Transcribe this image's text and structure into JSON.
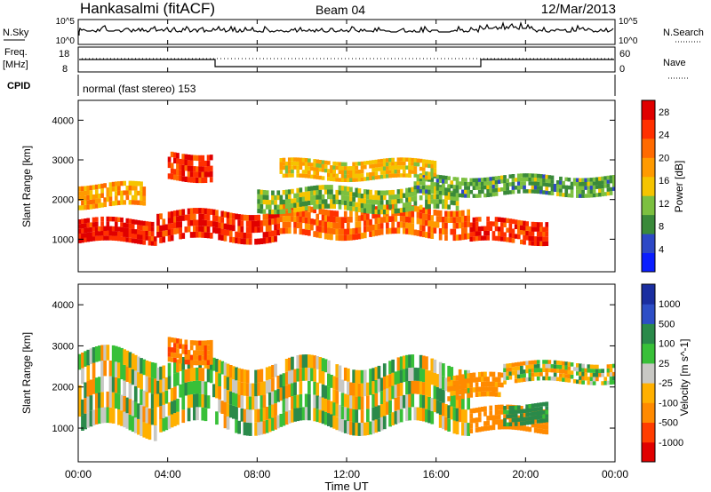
{
  "header": {
    "station": "Hankasalmi (fitACF)",
    "beam": "Beam 04",
    "date": "12/Mar/2013"
  },
  "noise_panel": {
    "left_label": "N.Sky",
    "right_label": "N.Search",
    "left_ticks": [
      "10^5",
      "10^0"
    ],
    "right_ticks": [
      "10^5",
      "10^0"
    ]
  },
  "freq_panel": {
    "left_label_1": "Freq.",
    "left_label_2": "[MHz]",
    "left_ticks": [
      "18",
      "8"
    ],
    "right_label": "Nave",
    "right_ticks": [
      "60",
      "0"
    ]
  },
  "cpid_panel": {
    "label": "CPID",
    "text": "normal (fast stereo) 153"
  },
  "x_axis": {
    "label": "Time UT",
    "ticks": [
      "00:00",
      "04:00",
      "08:00",
      "12:00",
      "16:00",
      "20:00",
      "00:00"
    ]
  },
  "colors": {
    "power": [
      "#0a1eff",
      "#2d48c6",
      "#3a8a3a",
      "#7cc040",
      "#f5c400",
      "#ff9a00",
      "#ff6a00",
      "#ff3000",
      "#e00000"
    ],
    "velocity": [
      "#e00000",
      "#ff3d00",
      "#ff8a00",
      "#ffb000",
      "#c8c8c4",
      "#38c038",
      "#2a8a4a",
      "#2d4ec6",
      "#1a2ea0"
    ],
    "ground_scatter": "#c4c4c0"
  },
  "chart_data": [
    {
      "type": "heatmap",
      "title": "Power",
      "ylabel": "Slant Range [km]",
      "xlabel": "",
      "ylim": [
        180,
        4500
      ],
      "y_ticks": [
        "1000",
        "2000",
        "3000",
        "4000"
      ],
      "colorbar": {
        "label": "Power [dB]",
        "ticks": [
          "4",
          "8",
          "12",
          "16",
          "20",
          "24",
          "28"
        ],
        "range": [
          0,
          30
        ]
      },
      "x_range_hours": [
        0,
        24
      ],
      "bands": [
        {
          "t_start": 0.0,
          "t_end": 3.5,
          "range_low": 900,
          "range_high": 1500,
          "value": 27
        },
        {
          "t_start": 3.5,
          "t_end": 9.0,
          "range_low": 950,
          "range_high": 1700,
          "value": 26
        },
        {
          "t_start": 9.0,
          "t_end": 17.5,
          "range_low": 1050,
          "range_high": 1800,
          "value": 22
        },
        {
          "t_start": 17.5,
          "t_end": 21.0,
          "range_low": 900,
          "range_high": 1500,
          "value": 26
        },
        {
          "t_start": 4.0,
          "t_end": 6.0,
          "range_low": 2500,
          "range_high": 3200,
          "value": 25
        },
        {
          "t_start": 0.0,
          "t_end": 3.0,
          "range_low": 1800,
          "range_high": 2400,
          "value": 18
        },
        {
          "t_start": 8.0,
          "t_end": 17.0,
          "range_low": 1700,
          "range_high": 2300,
          "value": 12
        },
        {
          "t_start": 15.0,
          "t_end": 24.0,
          "range_low": 2100,
          "range_high": 2600,
          "value": 10
        },
        {
          "t_start": 9.0,
          "t_end": 16.0,
          "range_low": 2500,
          "range_high": 3000,
          "value": 16
        }
      ]
    },
    {
      "type": "heatmap",
      "title": "Velocity",
      "ylabel": "Slant Range [km]",
      "xlabel": "Time UT",
      "ylim": [
        180,
        4500
      ],
      "y_ticks": [
        "1000",
        "2000",
        "3000",
        "4000"
      ],
      "colorbar": {
        "label": "Velocity [m s^-1]",
        "ticks": [
          "1000",
          "500",
          "100",
          "25",
          "-25",
          "-100",
          "-500",
          "-1000"
        ],
        "range": [
          -1000,
          1000
        ]
      },
      "x_range_hours": [
        0,
        24
      ],
      "bands": [
        {
          "t_start": 0.0,
          "t_end": 3.5,
          "range_low": 900,
          "range_high": 2800,
          "value": 0
        },
        {
          "t_start": 3.5,
          "t_end": 17.5,
          "range_low": 1000,
          "range_high": 2600,
          "value": 0
        },
        {
          "t_start": 17.5,
          "t_end": 21.0,
          "range_low": 900,
          "range_high": 1500,
          "value": -300
        },
        {
          "t_start": 16.5,
          "t_end": 19.0,
          "range_low": 1700,
          "range_high": 2300,
          "value": -200
        },
        {
          "t_start": 4.0,
          "t_end": 6.0,
          "range_low": 2600,
          "range_high": 3200,
          "value": -400
        },
        {
          "t_start": 19.0,
          "t_end": 21.0,
          "range_low": 1100,
          "range_high": 1600,
          "value": 200
        },
        {
          "t_start": 19.0,
          "t_end": 24.0,
          "range_low": 2100,
          "range_high": 2600,
          "value": 0
        }
      ]
    }
  ]
}
